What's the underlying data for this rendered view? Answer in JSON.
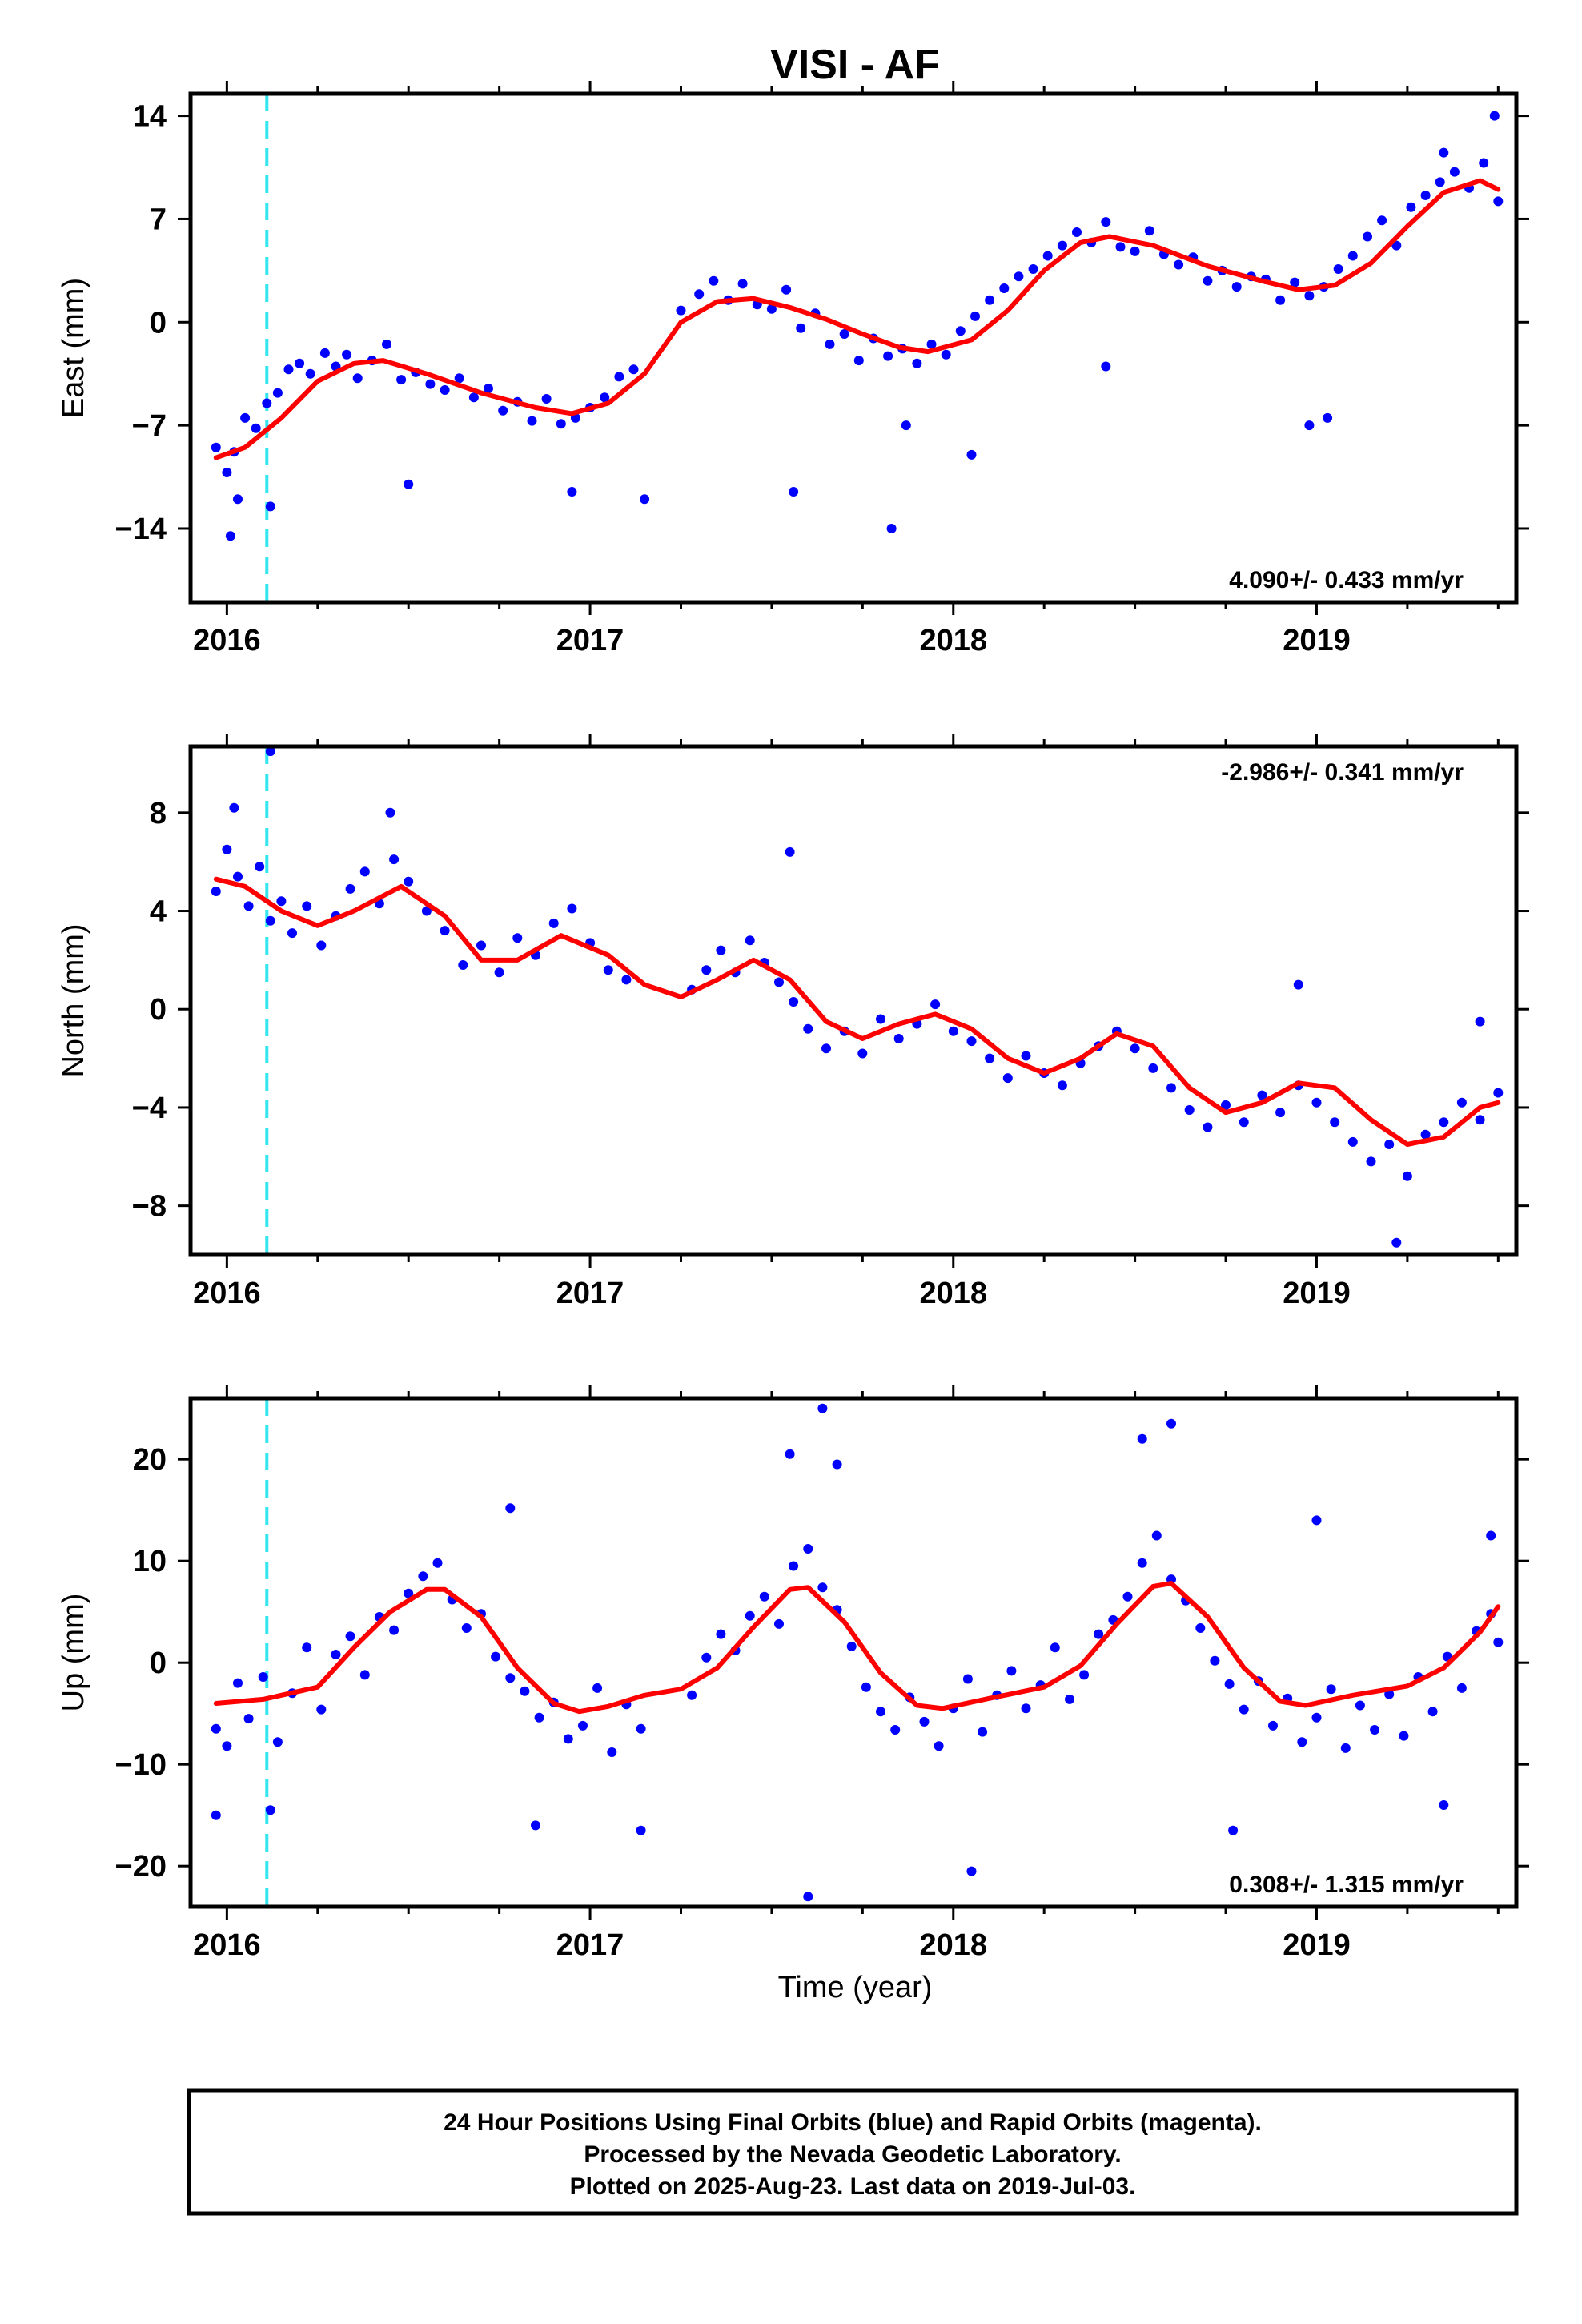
{
  "title": "VISI - AF",
  "xlabel": "Time (year)",
  "footer": {
    "line1": "24 Hour Positions Using Final Orbits (blue) and Rapid Orbits (magenta).",
    "line2": "Processed by the Nevada Geodetic Laboratory.",
    "line3": "Plotted on 2025-Aug-23. Last data on 2019-Jul-03."
  },
  "chart_data": [
    {
      "type": "scatter",
      "panel": "east",
      "title": "VISI - AF",
      "xlabel": "",
      "ylabel": "East (mm)",
      "xlim": [
        2015.9,
        2019.55
      ],
      "ylim": [
        -19,
        15.5
      ],
      "xticks": [
        2016,
        2017,
        2018,
        2019
      ],
      "xtick_labels": [
        "2016",
        "2017",
        "2018",
        "2019"
      ],
      "yticks": [
        -14,
        -7,
        0,
        7,
        14
      ],
      "ytick_labels": [
        "−14",
        "−7",
        "0",
        "7",
        "14"
      ],
      "rate_label": "4.090+/- 0.433 mm/yr",
      "rate_position": "bottom-right",
      "event_line_x": 2016.11,
      "grid": false,
      "series": [
        {
          "kind": "points",
          "color": "#0000ff",
          "x": [
            2015.97,
            2016.0,
            2016.02,
            2016.05,
            2016.08,
            2016.11,
            2016.14,
            2016.17,
            2016.2,
            2016.23,
            2016.27,
            2016.3,
            2016.33,
            2016.36,
            2016.4,
            2016.44,
            2016.48,
            2016.52,
            2016.56,
            2016.6,
            2016.64,
            2016.68,
            2016.72,
            2016.76,
            2016.8,
            2016.84,
            2016.88,
            2016.92,
            2016.96,
            2017.0,
            2017.04,
            2017.08,
            2017.12,
            2017.25,
            2017.3,
            2017.34,
            2017.38,
            2017.42,
            2017.46,
            2017.5,
            2017.54,
            2017.58,
            2017.62,
            2017.66,
            2017.7,
            2017.74,
            2017.78,
            2017.82,
            2017.86,
            2017.9,
            2017.94,
            2017.98,
            2018.02,
            2018.06,
            2018.1,
            2018.14,
            2018.18,
            2018.22,
            2018.26,
            2018.3,
            2018.34,
            2018.38,
            2018.42,
            2018.46,
            2018.5,
            2018.54,
            2018.58,
            2018.62,
            2018.66,
            2018.7,
            2018.74,
            2018.78,
            2018.82,
            2018.86,
            2018.9,
            2018.94,
            2018.98,
            2019.02,
            2019.06,
            2019.1,
            2019.14,
            2019.18,
            2019.22,
            2019.26,
            2019.3,
            2019.34,
            2019.38,
            2019.42,
            2019.46,
            2019.5,
            2016.01,
            2016.03,
            2016.12,
            2016.5,
            2016.95,
            2017.15,
            2017.56,
            2017.83,
            2017.87,
            2018.05,
            2018.42,
            2018.98,
            2019.03,
            2019.35,
            2019.49
          ],
          "y": [
            -8.5,
            -10.2,
            -8.8,
            -6.5,
            -7.2,
            -5.5,
            -4.8,
            -3.2,
            -2.8,
            -3.5,
            -2.1,
            -3.0,
            -2.2,
            -3.8,
            -2.6,
            -1.5,
            -3.9,
            -3.4,
            -4.2,
            -4.6,
            -3.8,
            -5.1,
            -4.5,
            -6.0,
            -5.4,
            -6.7,
            -5.2,
            -6.9,
            -6.5,
            -5.8,
            -5.1,
            -3.7,
            -3.2,
            0.8,
            1.9,
            2.8,
            1.5,
            2.6,
            1.2,
            0.9,
            2.2,
            -0.4,
            0.6,
            -1.5,
            -0.8,
            -2.6,
            -1.1,
            -2.3,
            -1.8,
            -2.8,
            -1.5,
            -2.2,
            -0.6,
            0.4,
            1.5,
            2.3,
            3.1,
            3.6,
            4.5,
            5.2,
            6.1,
            5.4,
            6.8,
            5.1,
            4.8,
            6.2,
            4.6,
            3.9,
            4.4,
            2.8,
            3.5,
            2.4,
            3.1,
            2.9,
            1.5,
            2.7,
            1.8,
            2.4,
            3.6,
            4.5,
            5.8,
            6.9,
            5.2,
            7.8,
            8.6,
            9.5,
            10.2,
            9.1,
            10.8,
            8.2,
            -14.5,
            -12.0,
            -12.5,
            -11.0,
            -11.5,
            -12.0,
            -11.5,
            -14.0,
            -7.0,
            -9.0,
            -3.0,
            -7.0,
            -6.5,
            11.5,
            14.0
          ]
        },
        {
          "kind": "line",
          "color": "#ff0000",
          "x": [
            2015.97,
            2016.05,
            2016.15,
            2016.25,
            2016.35,
            2016.43,
            2016.55,
            2016.7,
            2016.85,
            2016.95,
            2017.05,
            2017.15,
            2017.25,
            2017.35,
            2017.45,
            2017.55,
            2017.65,
            2017.75,
            2017.85,
            2017.93,
            2018.05,
            2018.15,
            2018.25,
            2018.35,
            2018.43,
            2018.55,
            2018.7,
            2018.85,
            2018.95,
            2019.05,
            2019.15,
            2019.25,
            2019.35,
            2019.45,
            2019.5
          ],
          "y": [
            -9.2,
            -8.5,
            -6.5,
            -4.0,
            -2.8,
            -2.6,
            -3.5,
            -4.8,
            -5.8,
            -6.2,
            -5.5,
            -3.5,
            0.0,
            1.4,
            1.6,
            1.0,
            0.2,
            -0.8,
            -1.7,
            -2.0,
            -1.2,
            0.8,
            3.5,
            5.4,
            5.8,
            5.2,
            3.8,
            2.8,
            2.2,
            2.5,
            4.0,
            6.5,
            8.8,
            9.6,
            9.0
          ]
        }
      ]
    },
    {
      "type": "scatter",
      "panel": "north",
      "xlabel": "",
      "ylabel": "North (mm)",
      "xlim": [
        2015.9,
        2019.55
      ],
      "ylim": [
        -10,
        10.7
      ],
      "xticks": [
        2016,
        2017,
        2018,
        2019
      ],
      "xtick_labels": [
        "2016",
        "2017",
        "2018",
        "2019"
      ],
      "yticks": [
        -8,
        -4,
        0,
        4,
        8
      ],
      "ytick_labels": [
        "−8",
        "−4",
        "0",
        "4",
        "8"
      ],
      "rate_label": "-2.986+/- 0.341 mm/yr",
      "rate_position": "top-right",
      "event_line_x": 2016.11,
      "grid": false,
      "series": [
        {
          "kind": "points",
          "color": "#0000ff",
          "x": [
            2015.97,
            2016.0,
            2016.03,
            2016.06,
            2016.09,
            2016.12,
            2016.15,
            2016.18,
            2016.22,
            2016.26,
            2016.3,
            2016.34,
            2016.38,
            2016.42,
            2016.46,
            2016.5,
            2016.55,
            2016.6,
            2016.65,
            2016.7,
            2016.75,
            2016.8,
            2016.85,
            2016.9,
            2016.95,
            2017.0,
            2017.05,
            2017.1,
            2017.28,
            2017.32,
            2017.36,
            2017.4,
            2017.44,
            2017.48,
            2017.52,
            2017.56,
            2017.6,
            2017.65,
            2017.7,
            2017.75,
            2017.8,
            2017.85,
            2017.9,
            2017.95,
            2018.0,
            2018.05,
            2018.1,
            2018.15,
            2018.2,
            2018.25,
            2018.3,
            2018.35,
            2018.4,
            2018.45,
            2018.5,
            2018.55,
            2018.6,
            2018.65,
            2018.7,
            2018.75,
            2018.8,
            2018.85,
            2018.9,
            2018.95,
            2019.0,
            2019.05,
            2019.1,
            2019.15,
            2019.2,
            2019.25,
            2019.3,
            2019.35,
            2019.4,
            2019.45,
            2019.5,
            2016.02,
            2016.12,
            2016.45,
            2017.55,
            2018.95,
            2019.22,
            2019.45
          ],
          "y": [
            4.8,
            6.5,
            5.4,
            4.2,
            5.8,
            3.6,
            4.4,
            3.1,
            4.2,
            2.6,
            3.8,
            4.9,
            5.6,
            4.3,
            6.1,
            5.2,
            4.0,
            3.2,
            1.8,
            2.6,
            1.5,
            2.9,
            2.2,
            3.5,
            4.1,
            2.7,
            1.6,
            1.2,
            0.8,
            1.6,
            2.4,
            1.5,
            2.8,
            1.9,
            1.1,
            0.3,
            -0.8,
            -1.6,
            -0.9,
            -1.8,
            -0.4,
            -1.2,
            -0.6,
            0.2,
            -0.9,
            -1.3,
            -2.0,
            -2.8,
            -1.9,
            -2.6,
            -3.1,
            -2.2,
            -1.5,
            -0.9,
            -1.6,
            -2.4,
            -3.2,
            -4.1,
            -4.8,
            -3.9,
            -4.6,
            -3.5,
            -4.2,
            -3.1,
            -3.8,
            -4.6,
            -5.4,
            -6.2,
            -5.5,
            -6.8,
            -5.1,
            -4.6,
            -3.8,
            -4.5,
            -3.4,
            8.2,
            10.5,
            8.0,
            6.4,
            1.0,
            -9.5,
            -0.5
          ]
        },
        {
          "kind": "line",
          "color": "#ff0000",
          "x": [
            2015.97,
            2016.05,
            2016.15,
            2016.25,
            2016.35,
            2016.48,
            2016.6,
            2016.7,
            2016.8,
            2016.92,
            2017.05,
            2017.15,
            2017.25,
            2017.35,
            2017.45,
            2017.55,
            2017.65,
            2017.75,
            2017.85,
            2017.95,
            2018.05,
            2018.15,
            2018.25,
            2018.35,
            2018.45,
            2018.55,
            2018.65,
            2018.75,
            2018.85,
            2018.95,
            2019.05,
            2019.15,
            2019.25,
            2019.35,
            2019.45,
            2019.5
          ],
          "y": [
            5.3,
            5.0,
            4.0,
            3.4,
            4.0,
            5.0,
            3.8,
            2.0,
            2.0,
            3.0,
            2.2,
            1.0,
            0.5,
            1.2,
            2.0,
            1.2,
            -0.5,
            -1.2,
            -0.6,
            -0.2,
            -0.8,
            -2.0,
            -2.6,
            -2.0,
            -1.0,
            -1.5,
            -3.2,
            -4.2,
            -3.8,
            -3.0,
            -3.2,
            -4.5,
            -5.5,
            -5.2,
            -4.0,
            -3.8
          ]
        }
      ]
    },
    {
      "type": "scatter",
      "panel": "up",
      "xlabel": "Time (year)",
      "ylabel": "Up (mm)",
      "xlim": [
        2015.9,
        2019.55
      ],
      "ylim": [
        -24,
        26
      ],
      "xticks": [
        2016,
        2017,
        2018,
        2019
      ],
      "xtick_labels": [
        "2016",
        "2017",
        "2018",
        "2019"
      ],
      "yticks": [
        -20,
        -10,
        0,
        10,
        20
      ],
      "ytick_labels": [
        "−20",
        "−10",
        "0",
        "10",
        "20"
      ],
      "rate_label": "0.308+/- 1.315 mm/yr",
      "rate_position": "bottom-right",
      "event_line_x": 2016.11,
      "grid": false,
      "series": [
        {
          "kind": "points",
          "color": "#0000ff",
          "x": [
            2015.97,
            2016.0,
            2016.03,
            2016.06,
            2016.1,
            2016.14,
            2016.18,
            2016.22,
            2016.26,
            2016.3,
            2016.34,
            2016.38,
            2016.42,
            2016.46,
            2016.5,
            2016.54,
            2016.58,
            2016.62,
            2016.66,
            2016.7,
            2016.74,
            2016.78,
            2016.82,
            2016.86,
            2016.9,
            2016.94,
            2016.98,
            2017.02,
            2017.06,
            2017.1,
            2017.14,
            2017.28,
            2017.32,
            2017.36,
            2017.4,
            2017.44,
            2017.48,
            2017.52,
            2017.56,
            2017.6,
            2017.64,
            2017.68,
            2017.72,
            2017.76,
            2017.8,
            2017.84,
            2017.88,
            2017.92,
            2017.96,
            2018.0,
            2018.04,
            2018.08,
            2018.12,
            2018.16,
            2018.2,
            2018.24,
            2018.28,
            2018.32,
            2018.36,
            2018.4,
            2018.44,
            2018.48,
            2018.52,
            2018.56,
            2018.6,
            2018.64,
            2018.68,
            2018.72,
            2018.76,
            2018.8,
            2018.84,
            2018.88,
            2018.92,
            2018.96,
            2019.0,
            2019.04,
            2019.08,
            2019.12,
            2019.16,
            2019.2,
            2019.24,
            2019.28,
            2019.32,
            2019.36,
            2019.4,
            2019.44,
            2019.48,
            2019.5,
            2015.97,
            2016.12,
            2016.78,
            2016.85,
            2017.14,
            2017.55,
            2017.64,
            2017.68,
            2017.6,
            2018.05,
            2018.52,
            2018.6,
            2018.77,
            2019.0,
            2019.35,
            2019.48
          ],
          "y": [
            -6.5,
            -8.2,
            -2.0,
            -5.5,
            -1.4,
            -7.8,
            -3.0,
            1.5,
            -4.6,
            0.8,
            2.6,
            -1.2,
            4.5,
            3.2,
            6.8,
            8.5,
            9.8,
            6.2,
            3.4,
            4.8,
            0.6,
            -1.5,
            -2.8,
            -5.4,
            -3.9,
            -7.5,
            -6.2,
            -2.5,
            -8.8,
            -4.1,
            -6.5,
            -3.2,
            0.5,
            2.8,
            1.2,
            4.6,
            6.5,
            3.8,
            9.5,
            11.2,
            7.4,
            5.2,
            1.6,
            -2.4,
            -4.8,
            -6.6,
            -3.4,
            -5.8,
            -8.2,
            -4.5,
            -1.6,
            -6.8,
            -3.2,
            -0.8,
            -4.5,
            -2.2,
            1.5,
            -3.6,
            -1.2,
            2.8,
            4.2,
            6.5,
            9.8,
            12.5,
            8.2,
            6.1,
            3.4,
            0.2,
            -2.1,
            -4.6,
            -1.8,
            -6.2,
            -3.5,
            -7.8,
            -5.4,
            -2.6,
            -8.4,
            -4.2,
            -6.6,
            -3.1,
            -7.2,
            -1.4,
            -4.8,
            0.6,
            -2.5,
            3.1,
            4.8,
            2.0,
            -15.0,
            -14.5,
            15.2,
            -16.0,
            -16.5,
            20.5,
            25.0,
            19.5,
            -23.0,
            -20.5,
            22.0,
            23.5,
            -16.5,
            14.0,
            -14.0,
            12.5
          ]
        },
        {
          "kind": "line",
          "color": "#ff0000",
          "x": [
            2015.97,
            2016.1,
            2016.25,
            2016.35,
            2016.45,
            2016.55,
            2016.6,
            2016.7,
            2016.8,
            2016.9,
            2016.97,
            2017.05,
            2017.15,
            2017.25,
            2017.35,
            2017.45,
            2017.55,
            2017.6,
            2017.7,
            2017.8,
            2017.9,
            2017.97,
            2018.1,
            2018.25,
            2018.35,
            2018.45,
            2018.55,
            2018.6,
            2018.7,
            2018.8,
            2018.9,
            2018.97,
            2019.1,
            2019.25,
            2019.35,
            2019.45,
            2019.5
          ],
          "y": [
            -4.0,
            -3.6,
            -2.4,
            1.5,
            5.0,
            7.2,
            7.2,
            4.5,
            -0.5,
            -4.0,
            -4.8,
            -4.3,
            -3.2,
            -2.6,
            -0.5,
            3.5,
            7.2,
            7.4,
            4.0,
            -1.0,
            -4.2,
            -4.5,
            -3.5,
            -2.4,
            -0.3,
            3.8,
            7.5,
            7.8,
            4.5,
            -0.5,
            -3.8,
            -4.2,
            -3.2,
            -2.3,
            -0.5,
            3.0,
            5.5
          ]
        }
      ]
    }
  ]
}
